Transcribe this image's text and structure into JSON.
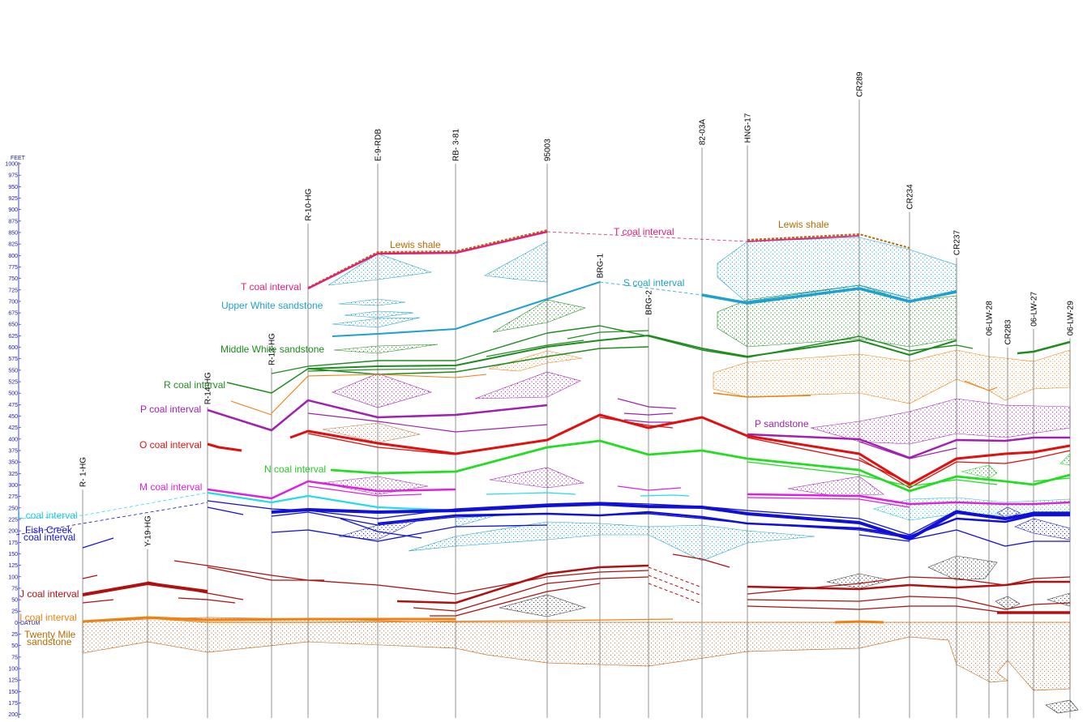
{
  "axis": {
    "units": "FEET",
    "datum_label": "DATUM",
    "ticks": [
      {
        "v": 1000,
        "label": "1000"
      },
      {
        "v": 975,
        "label": "975"
      },
      {
        "v": 950,
        "label": "950"
      },
      {
        "v": 925,
        "label": "925"
      },
      {
        "v": 900,
        "label": "900"
      },
      {
        "v": 875,
        "label": "875"
      },
      {
        "v": 850,
        "label": "850"
      },
      {
        "v": 825,
        "label": "825"
      },
      {
        "v": 800,
        "label": "800"
      },
      {
        "v": 775,
        "label": "775"
      },
      {
        "v": 750,
        "label": "750"
      },
      {
        "v": 725,
        "label": "725"
      },
      {
        "v": 700,
        "label": "700"
      },
      {
        "v": 675,
        "label": "675"
      },
      {
        "v": 650,
        "label": "650"
      },
      {
        "v": 625,
        "label": "625"
      },
      {
        "v": 600,
        "label": "600"
      },
      {
        "v": 575,
        "label": "575"
      },
      {
        "v": 550,
        "label": "550"
      },
      {
        "v": 525,
        "label": "525"
      },
      {
        "v": 500,
        "label": "500"
      },
      {
        "v": 475,
        "label": "475"
      },
      {
        "v": 450,
        "label": "450"
      },
      {
        "v": 425,
        "label": "425"
      },
      {
        "v": 400,
        "label": "400"
      },
      {
        "v": 375,
        "label": "375"
      },
      {
        "v": 350,
        "label": "350"
      },
      {
        "v": 325,
        "label": "325"
      },
      {
        "v": 300,
        "label": "300"
      },
      {
        "v": 275,
        "label": "275"
      },
      {
        "v": 250,
        "label": "250"
      },
      {
        "v": 225,
        "label": "225"
      },
      {
        "v": 200,
        "label": "200"
      },
      {
        "v": 175,
        "label": "175"
      },
      {
        "v": 150,
        "label": "150"
      },
      {
        "v": 125,
        "label": "125"
      },
      {
        "v": 100,
        "label": "100"
      },
      {
        "v": 75,
        "label": "75"
      },
      {
        "v": 50,
        "label": "50"
      },
      {
        "v": 25,
        "label": "25"
      },
      {
        "v": 0,
        "label": "0"
      },
      {
        "v": -25,
        "label": "25"
      },
      {
        "v": -50,
        "label": "50"
      },
      {
        "v": -75,
        "label": "75"
      },
      {
        "v": -100,
        "label": "100"
      },
      {
        "v": -125,
        "label": "125"
      },
      {
        "v": -150,
        "label": "150"
      },
      {
        "v": -175,
        "label": "175"
      },
      {
        "v": -200,
        "label": "200"
      }
    ]
  },
  "wells": [
    {
      "name": "R- 1-HG",
      "top_ft": 290
    },
    {
      "name": "Y-19-HG",
      "top_ft": 160
    },
    {
      "name": "R-14-HG",
      "top_ft": 470
    },
    {
      "name": "R-13-HG",
      "top_ft": 555
    },
    {
      "name": "R-10-HG",
      "top_ft": 870
    },
    {
      "name": "E-9-RDB",
      "top_ft": 1000
    },
    {
      "name": "RB- 3-81",
      "top_ft": 1000
    },
    {
      "name": "95003",
      "top_ft": 1000
    },
    {
      "name": "BRG-1",
      "top_ft": 745
    },
    {
      "name": "BRG-2",
      "top_ft": 665
    },
    {
      "name": "82-03A",
      "top_ft": 1035
    },
    {
      "name": "HNG-17",
      "top_ft": 1040
    },
    {
      "name": "CR289",
      "top_ft": 1140
    },
    {
      "name": "CR234",
      "top_ft": 895
    },
    {
      "name": "CR237",
      "top_ft": 795
    },
    {
      "name": "06-LW-28",
      "top_ft": 620
    },
    {
      "name": "CR283",
      "top_ft": 600
    },
    {
      "name": "06-LW-27",
      "top_ft": 640
    },
    {
      "name": "06-LW-29",
      "top_ft": 620
    }
  ],
  "colors": {
    "lewis": "#b36b00",
    "t_coal": "#e0207a",
    "upper_white": "#1fa0cf",
    "middle_white": "#1e8c1e",
    "r_coal": "#1e8c1e",
    "p_coal": "#a020b0",
    "o_coal": "#e01010",
    "n_coal": "#22dd22",
    "m_coal": "#e020e0",
    "l_coal": "#22dde8",
    "fish_creek": "#1010d8",
    "j_coal": "#b01010",
    "i_coal": "#f08010",
    "twenty_mile": "#c87832",
    "black": "#222222",
    "axis": "#1a1aa6"
  },
  "labels": {
    "lewis_1": "Lewis shale",
    "lewis_2": "Lewis shale",
    "t_coal_1": "T coal interval",
    "t_coal_2": "T coal interval",
    "s_coal": "S coal interval",
    "upper_white": "Upper White sandstone",
    "middle_white": "Middle White sandstone",
    "r_coal": "R coal interval",
    "p_coal": "P coal interval",
    "p_sandstone": "P sandstone",
    "o_coal": "O coal interval",
    "n_coal": "N coal interval",
    "m_coal": "M coal interval",
    "l_coal": "L coal interval",
    "fish_creek_1": "Fish Creek",
    "fish_creek_2": "coal interval",
    "j_coal": "J coal interval",
    "i_coal": "I coal interval",
    "twenty_mile_1": "Twenty Mile",
    "twenty_mile_2": "sandstone"
  }
}
